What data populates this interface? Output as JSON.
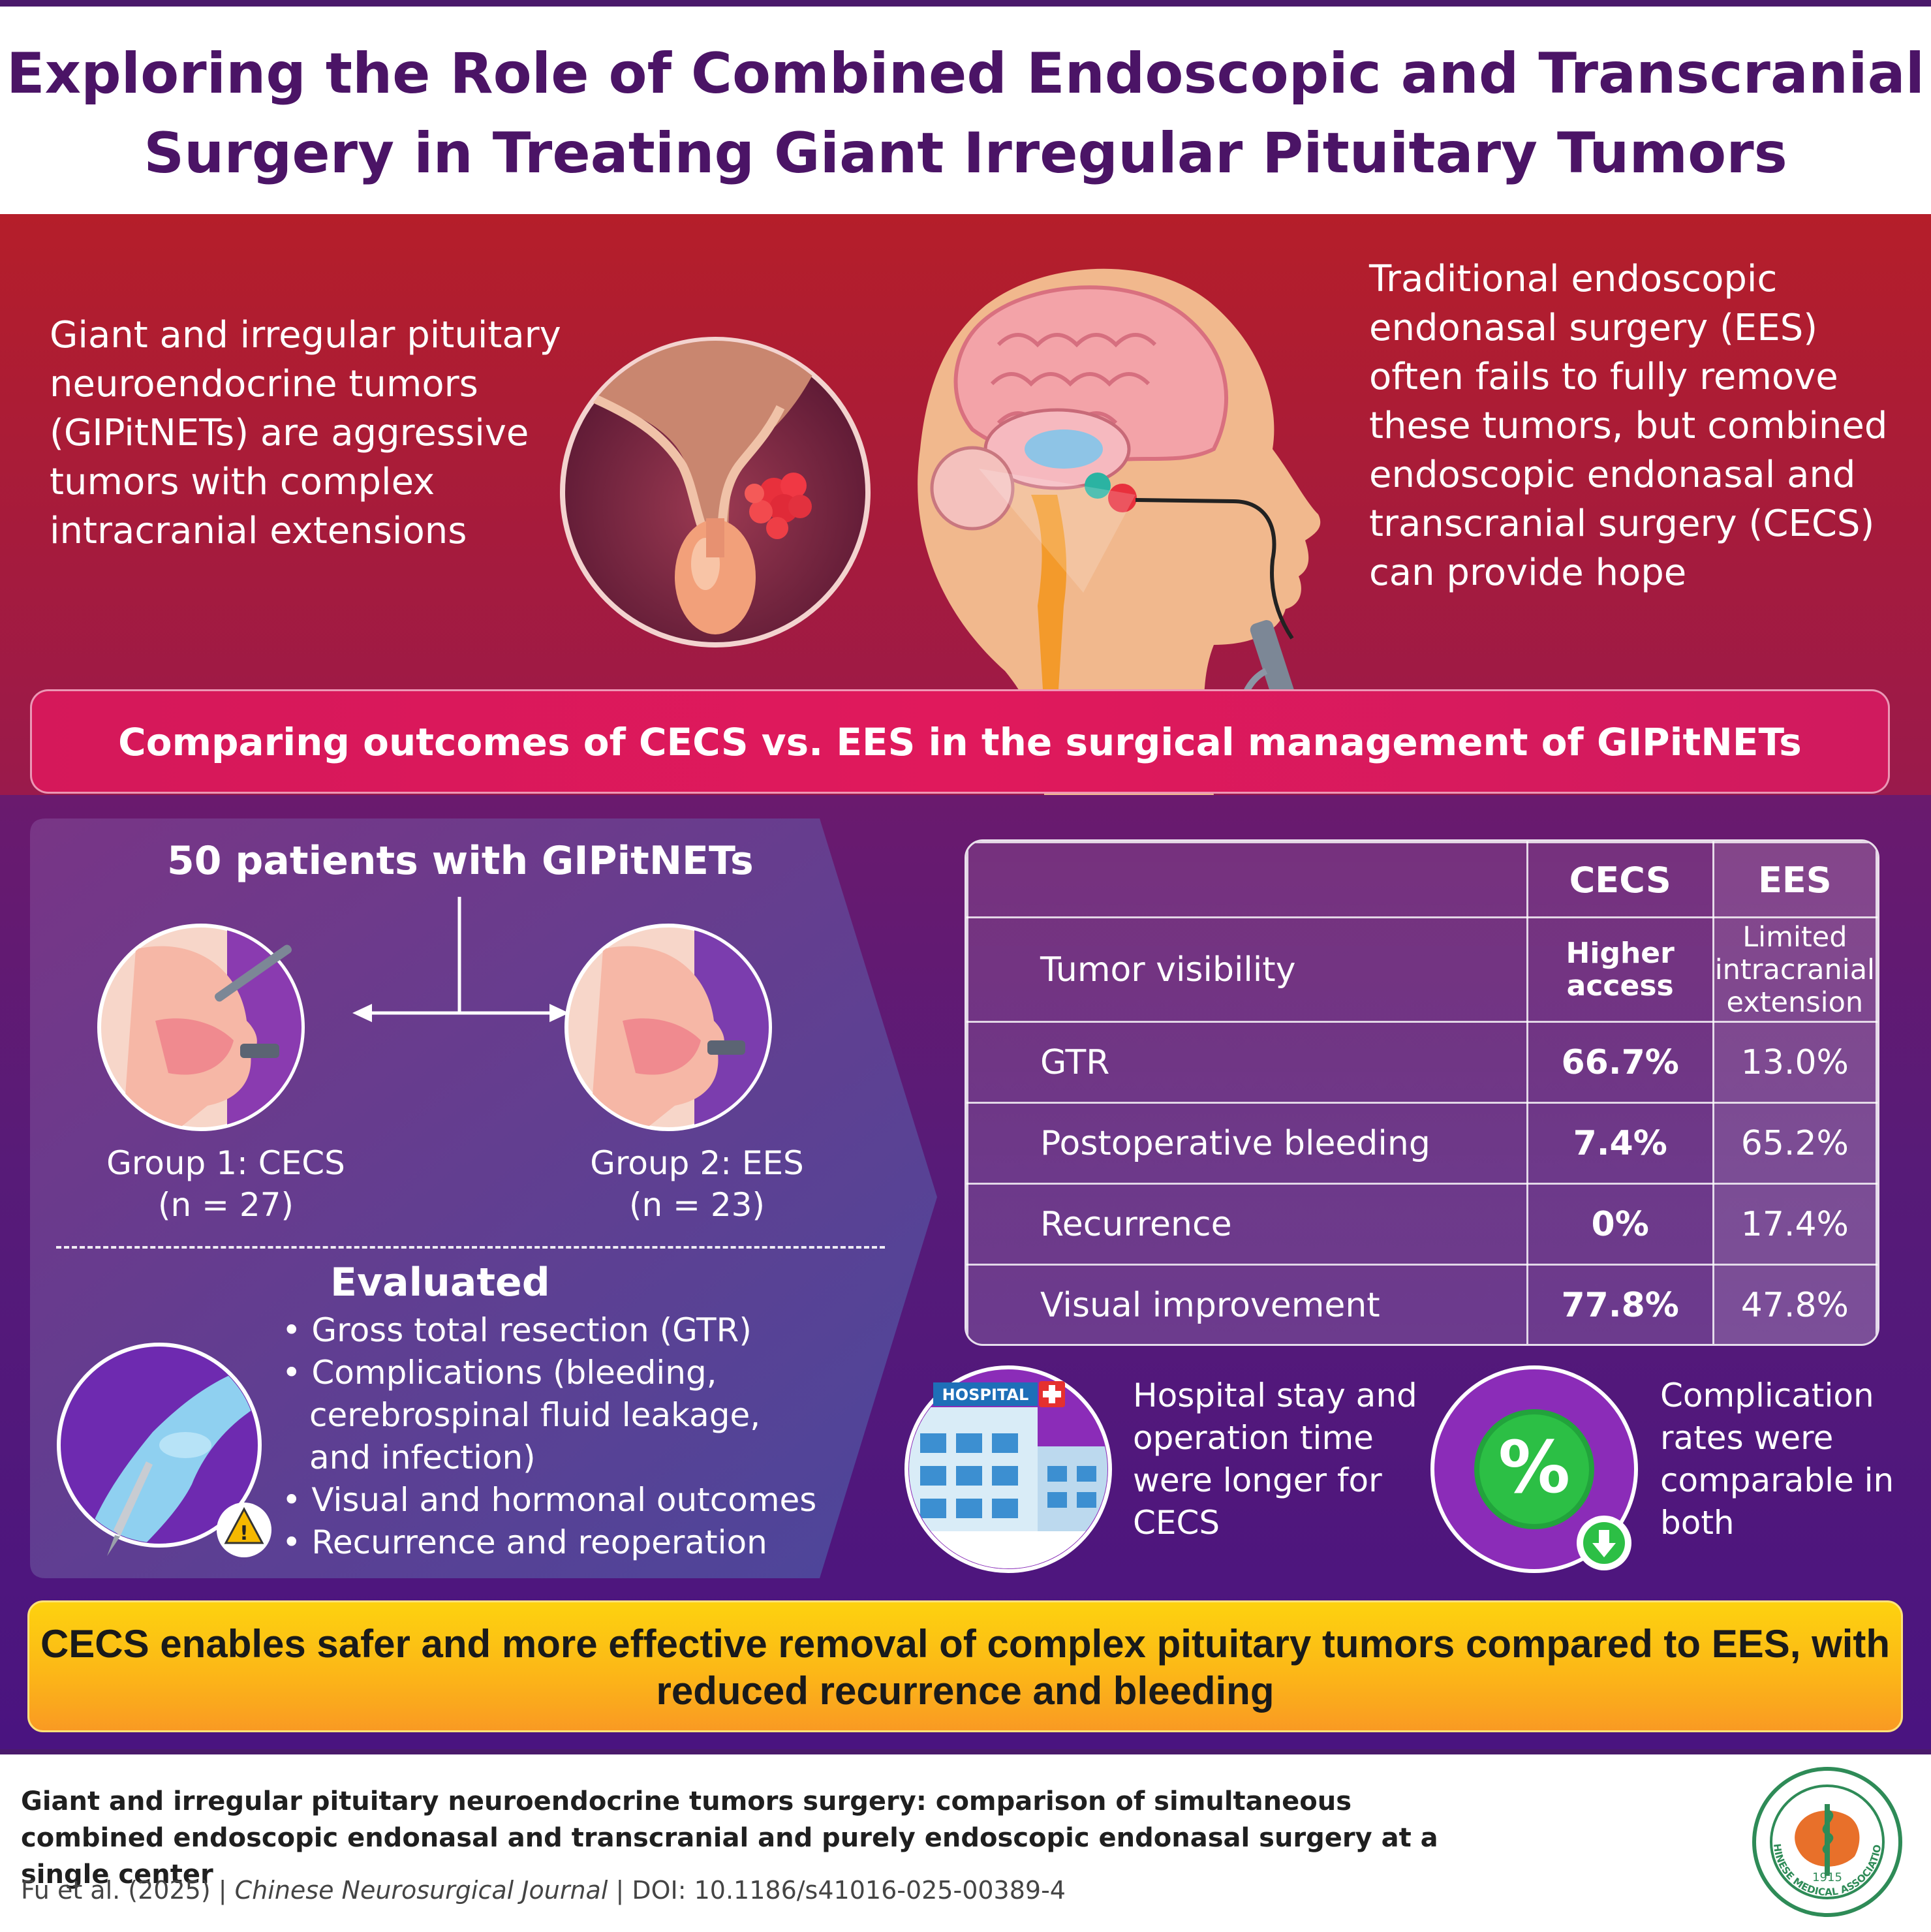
{
  "title": "Exploring the Role of Combined Endoscopic and Transcranial Surgery in Treating Giant Irregular Pituitary Tumors",
  "intro": {
    "left_text": "Giant and irregular pituitary neuroendocrine tumors (GIPitNETs) are aggressive tumors with complex intracranial extensions",
    "right_text": "Traditional endoscopic endonasal surgery (EES) often fails to fully remove these tumors, but combined endoscopic endonasal and transcranial surgery (CECS) can provide hope"
  },
  "banner": "Comparing outcomes of CECS vs. EES in the surgical management of GIPitNETs",
  "study": {
    "patients": "50 patients with GIPitNETs",
    "group1_label": "Group 1: CECS",
    "group1_n": "(n = 27)",
    "group2_label": "Group 2: EES",
    "group2_n": "(n = 23)",
    "evaluated_heading": "Evaluated",
    "evaluated_items": [
      "• Gross total resection (GTR)",
      "• Complications (bleeding,",
      "cerebrospinal fluid leakage,",
      "and infection)",
      "• Visual and hormonal outcomes",
      "• Recurrence and reoperation"
    ]
  },
  "table": {
    "col_cecs": "CECS",
    "col_ees": "EES",
    "rows": [
      {
        "label": "Tumor visibility",
        "cecs": "Higher access",
        "ees": "Limited intracranial extension"
      },
      {
        "label": "GTR",
        "cecs": "66.7%",
        "ees": "13.0%"
      },
      {
        "label": "Postoperative bleeding",
        "cecs": "7.4%",
        "ees": "65.2%"
      },
      {
        "label": "Recurrence",
        "cecs": "0%",
        "ees": "17.4%"
      },
      {
        "label": "Visual improvement",
        "cecs": "77.8%",
        "ees": "47.8%"
      }
    ]
  },
  "notes": {
    "hospital_sign": "HOSPITAL",
    "hospital_note": "Hospital stay and operation time were longer for CECS",
    "complication_note": "Complication rates were comparable in both",
    "percent_glyph": "%"
  },
  "conclusion": "CECS enables safer and more effective removal of complex pituitary tumors compared to EES, with reduced recurrence and bleeding",
  "footer": {
    "paper_title": "Giant and irregular pituitary neuroendocrine tumors surgery: comparison of simultaneous combined endoscopic endonasal and transcranial and purely endoscopic endonasal surgery at a single center",
    "authors": "Fu et al. (2025)",
    "sep1": " | ",
    "journal": "Chinese Neurosurgical Journal",
    "sep2": " | ",
    "doi": "DOI: 10.1186/s41016-025-00389-4"
  },
  "logo": {
    "year": "1915",
    "org": "CHINESE MEDICAL ASSOCIATION"
  },
  "colors": {
    "title": "#4b1466",
    "intro_red": "#b51e2a",
    "banner_pink": "#e0195c",
    "main_purple": "#571b78",
    "conclusion_yellow": "#fdc414",
    "logo_green": "#2e8b57"
  }
}
